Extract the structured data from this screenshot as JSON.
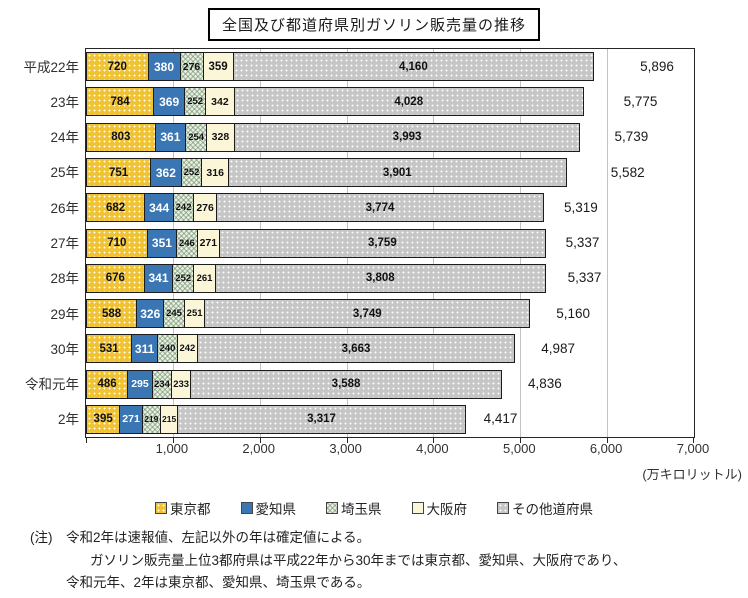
{
  "title": "全国及び都道府県別ガソリン販売量の推移",
  "chart_data": {
    "type": "bar",
    "orientation": "horizontal",
    "stacked": true,
    "grid": true,
    "legend_position": "bottom",
    "categories": [
      "平成22年",
      "23年",
      "24年",
      "25年",
      "26年",
      "27年",
      "28年",
      "29年",
      "30年",
      "令和元年",
      "2年"
    ],
    "series": [
      {
        "key": "tokyo",
        "name": "東京都",
        "color": "#F0C335",
        "pattern": "dots",
        "label_color": "#111111",
        "values": [
          720,
          784,
          803,
          751,
          682,
          710,
          676,
          588,
          531,
          486,
          395
        ]
      },
      {
        "key": "aichi",
        "name": "愛知県",
        "color": "#3A76B4",
        "pattern": "solid",
        "label_color": "#ffffff",
        "values": [
          380,
          369,
          361,
          362,
          344,
          351,
          341,
          326,
          311,
          295,
          271
        ]
      },
      {
        "key": "saitama",
        "name": "埼玉県",
        "color": "#E7EDDF",
        "pattern": "crosshatch",
        "label_color": "#111111",
        "values": [
          276,
          252,
          254,
          252,
          242,
          246,
          252,
          245,
          240,
          234,
          219
        ]
      },
      {
        "key": "osaka",
        "name": "大阪府",
        "color": "#FCF6D8",
        "pattern": "solid",
        "label_color": "#111111",
        "values": [
          359,
          342,
          328,
          316,
          276,
          271,
          261,
          251,
          242,
          233,
          215
        ]
      },
      {
        "key": "others",
        "name": "その他道府県",
        "color": "#C6C6C6",
        "pattern": "dots",
        "label_color": "#111111",
        "values": [
          4160,
          4028,
          3993,
          3901,
          3774,
          3759,
          3808,
          3749,
          3663,
          3588,
          3317
        ]
      }
    ],
    "totals": [
      5896,
      5775,
      5739,
      5582,
      5319,
      5337,
      5337,
      5160,
      4987,
      4836,
      4417
    ],
    "xlim": [
      0,
      7000
    ],
    "x_ticks": [
      "1,000",
      "2,000",
      "3,000",
      "4,000",
      "5,000",
      "6,000",
      "7,000"
    ],
    "x_unit": "(万キロリットル)"
  },
  "notes": {
    "line1": "(注)　令和2年は速報値、左記以外の年は確定値による。",
    "line2": "ガソリン販売量上位3都府県は平成22年から30年までは東京都、愛知県、大阪府であり、",
    "line3": "令和元年、2年は東京都、愛知県、埼玉県である。"
  }
}
